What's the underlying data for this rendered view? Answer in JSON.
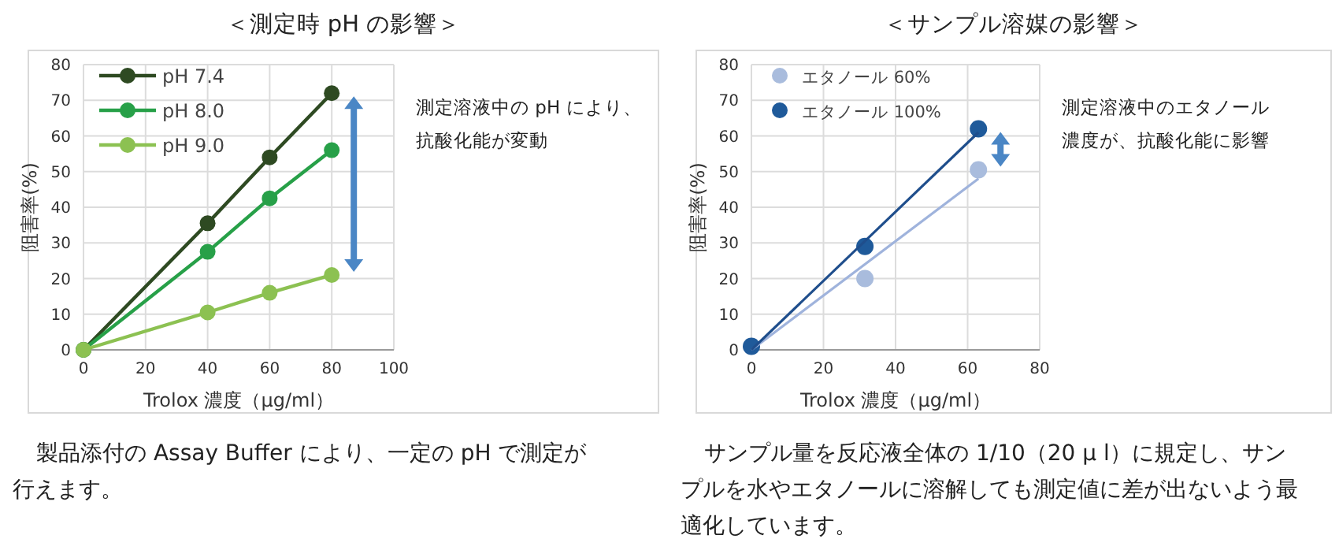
{
  "chart_data": [
    {
      "type": "line",
      "title": "＜測定時 pH の影響＞",
      "xlabel": "Trolox 濃度（μg/ml）",
      "ylabel": "阻害率(%)",
      "x": [
        0,
        40,
        60,
        80
      ],
      "xlim": [
        0,
        100
      ],
      "xticks": [
        0,
        20,
        40,
        60,
        80,
        100
      ],
      "ylim": [
        0,
        80
      ],
      "yticks": [
        0,
        10,
        20,
        30,
        40,
        50,
        60,
        70,
        80
      ],
      "grid": true,
      "legend": "top left",
      "marker": "circle",
      "line_style": "solid",
      "series": [
        {
          "name": "pH 7.4",
          "color": "#2e4a22",
          "values": [
            0,
            35.5,
            54,
            72
          ]
        },
        {
          "name": "pH 8.0",
          "color": "#27a048",
          "values": [
            0,
            27.5,
            42.5,
            56
          ]
        },
        {
          "name": "pH 9.0",
          "color": "#8cc152",
          "values": [
            0,
            10.5,
            16,
            21
          ]
        }
      ],
      "annotations": [
        "測定溶液中の pH により、抗酸化能が変動",
        "製品添付の Assay Buffer により、一定の pH で測定が行えます。"
      ]
    },
    {
      "type": "scatter",
      "title": "＜サンプル溶媒の影響＞",
      "xlabel": "Trolox 濃度（μg/ml）",
      "ylabel": "阻害率(%)",
      "xlim": [
        0,
        80
      ],
      "xticks": [
        0,
        20,
        40,
        60,
        80
      ],
      "ylim": [
        0,
        80
      ],
      "yticks": [
        0,
        10,
        20,
        30,
        40,
        50,
        60,
        70,
        80
      ],
      "grid": true,
      "legend": "top left",
      "marker": "circle",
      "series": [
        {
          "name": "エタノール 60%",
          "color": "#a9bcdd",
          "x": [
            31.5,
            63
          ],
          "values": [
            20,
            50.5
          ]
        },
        {
          "name": "エタノール 100%",
          "color": "#1f5a9a",
          "x": [
            0,
            31.5,
            63
          ],
          "values": [
            1,
            29,
            62
          ]
        },
        {
          "type": "line",
          "color": "#9fb3dc",
          "marker": "none",
          "x": [
            0,
            63
          ],
          "values": [
            0,
            48
          ]
        },
        {
          "type": "line",
          "color": "#1f4e8c",
          "marker": "none",
          "x": [
            0,
            63
          ],
          "values": [
            0,
            61
          ]
        }
      ],
      "annotations": [
        "測定溶液中のエタノール濃度が、抗酸化能に影響",
        "サンプル量を反応液全体の 1/10（20 μ l）に規定し、サンプルを水やエタノールに溶解しても測定値に差が出ないよう最適化しています。"
      ]
    }
  ]
}
